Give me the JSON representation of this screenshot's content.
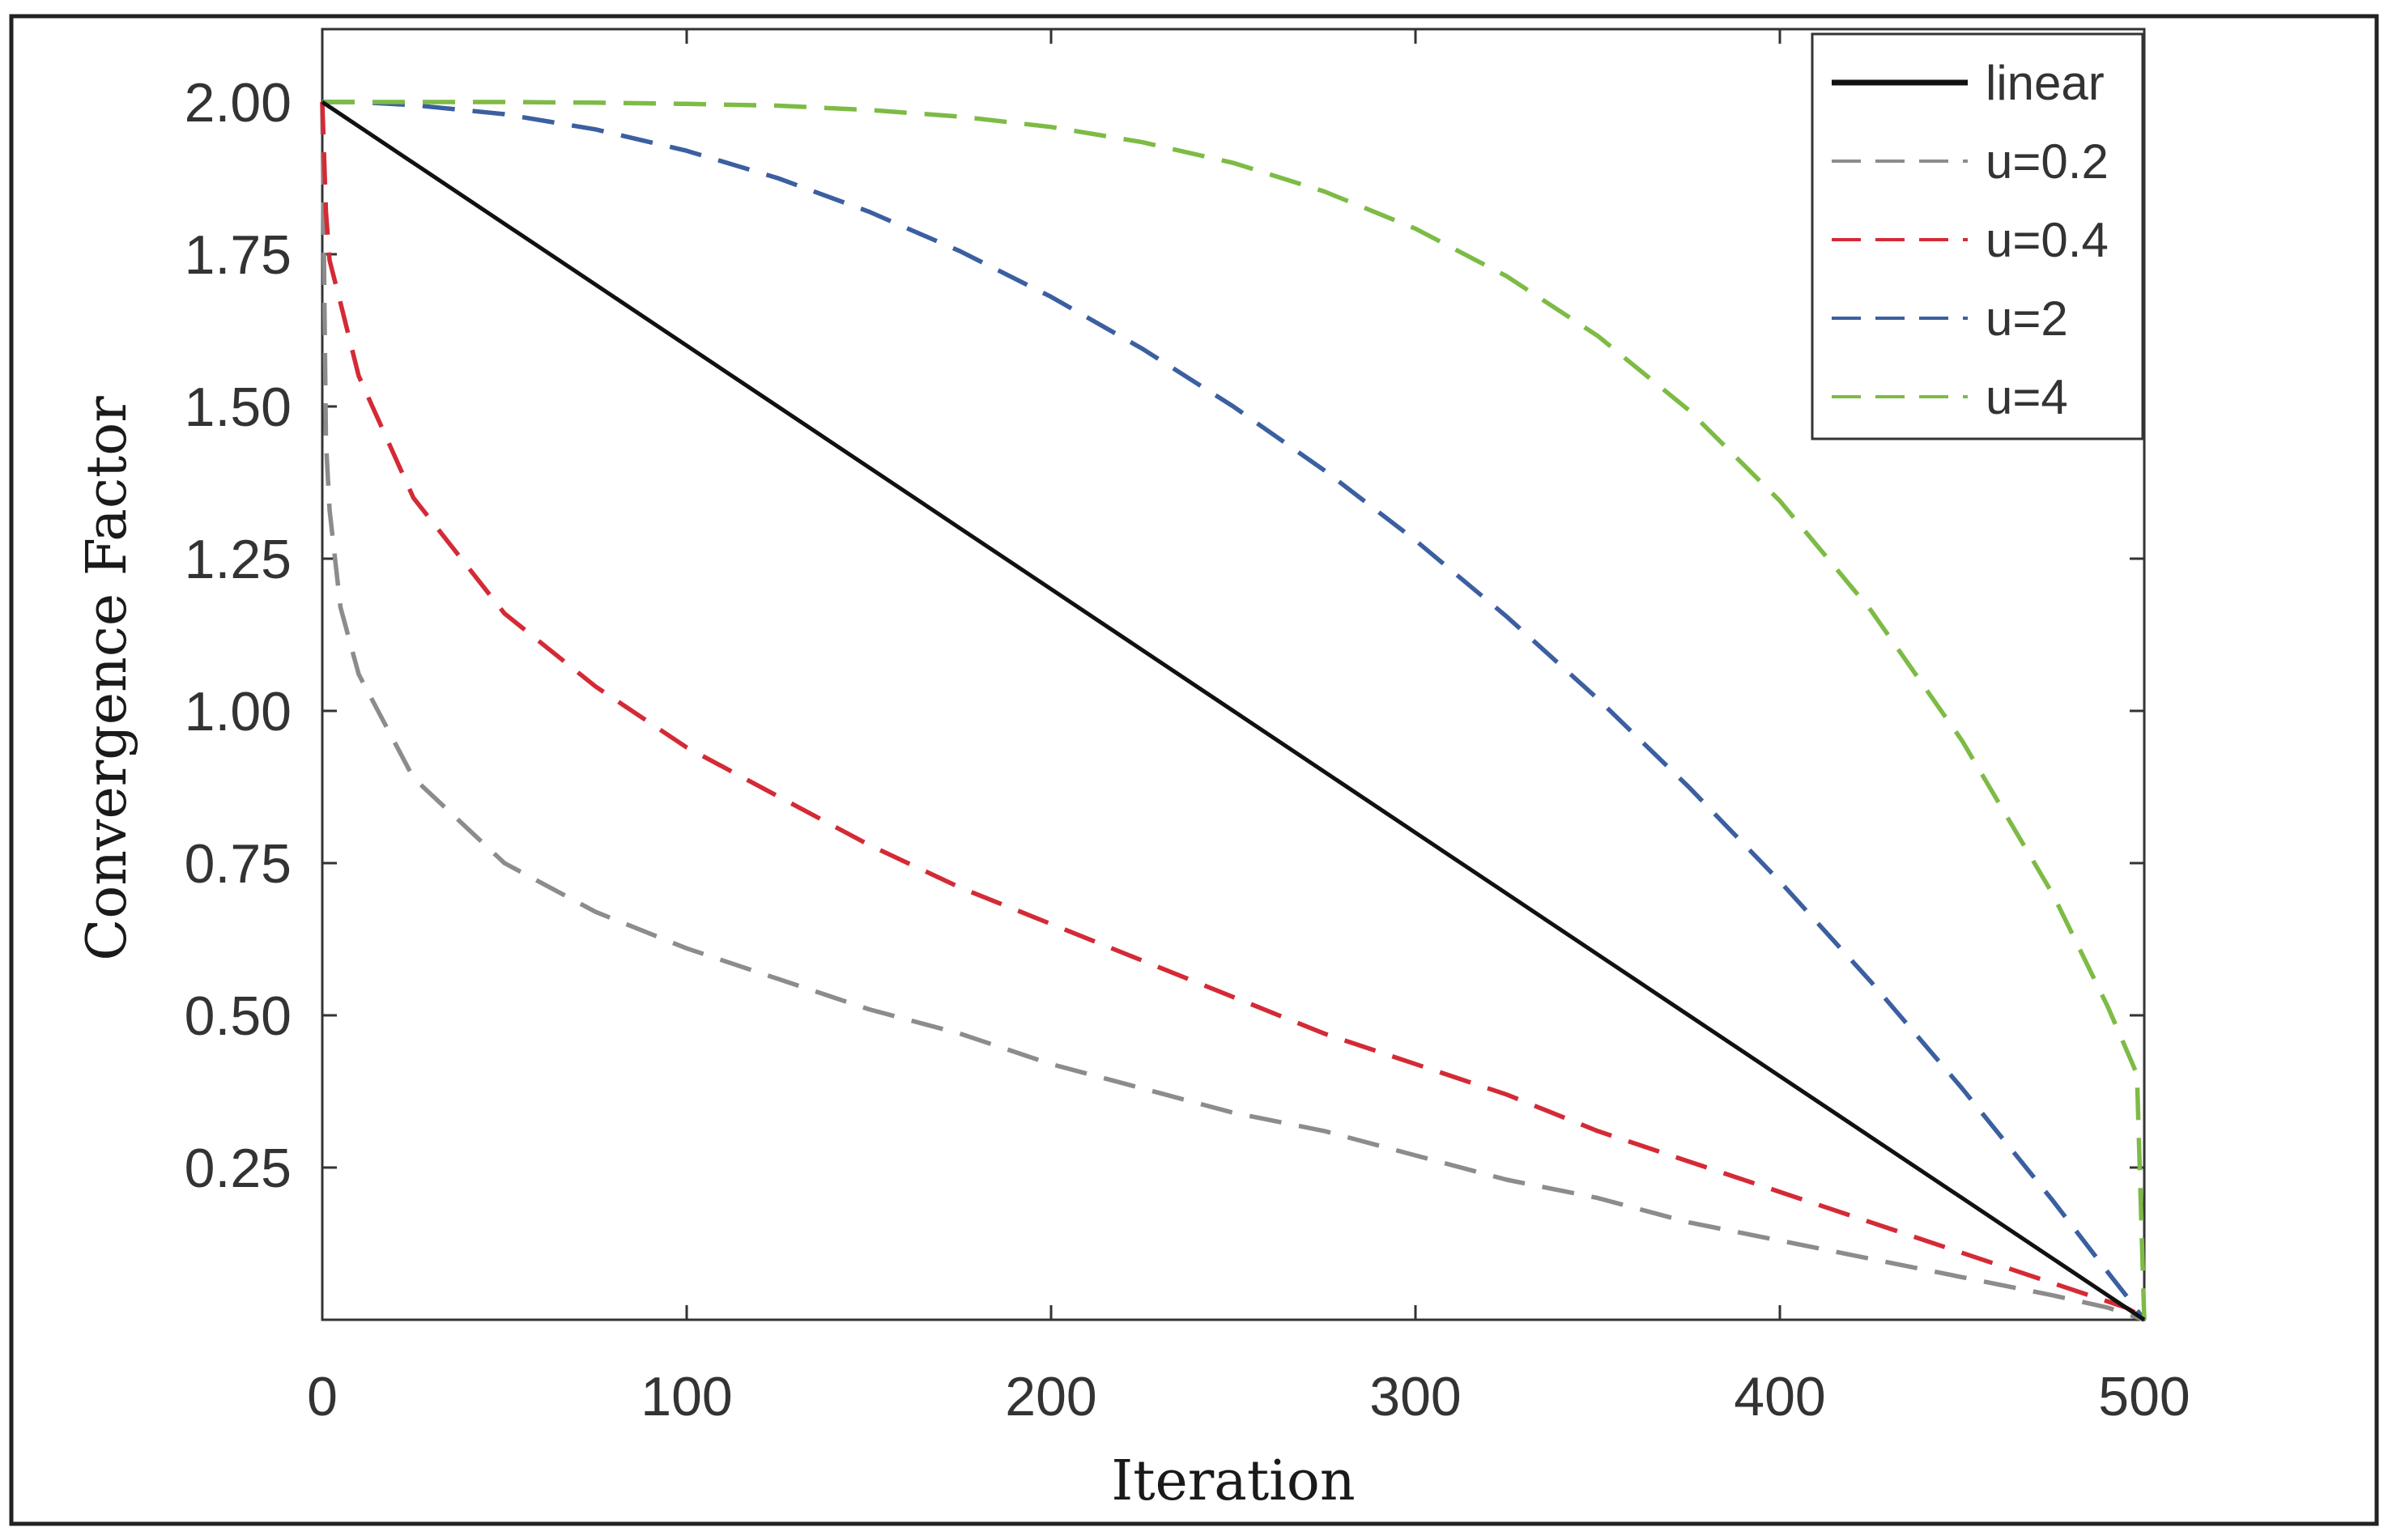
{
  "chart_data": {
    "type": "line",
    "title": "",
    "xlabel": "Iteration",
    "ylabel": "Convergence Factor",
    "xlim": [
      0,
      500
    ],
    "ylim": [
      0,
      2.0
    ],
    "x_ticks": [
      0,
      100,
      200,
      300,
      400,
      500
    ],
    "x_tick_labels": [
      "0",
      "100",
      "200",
      "300",
      "400",
      "500"
    ],
    "y_ticks": [
      0.25,
      0.5,
      0.75,
      1.0,
      1.25,
      1.5,
      1.75,
      2.0
    ],
    "y_tick_labels": [
      "0.25",
      "0.50",
      "0.75",
      "1.00",
      "1.25",
      "1.50",
      "1.75",
      "2.00"
    ],
    "grid": false,
    "legend_position": "top-right",
    "x": [
      0,
      1,
      2,
      5,
      10,
      25,
      50,
      75,
      100,
      125,
      150,
      175,
      200,
      225,
      250,
      275,
      300,
      325,
      350,
      375,
      400,
      425,
      450,
      475,
      490,
      495,
      498,
      500
    ],
    "series": [
      {
        "name": "linear",
        "color": "#111111",
        "style": "solid",
        "values": [
          2.0,
          1.996,
          1.992,
          1.98,
          1.96,
          1.9,
          1.8,
          1.7,
          1.6,
          1.5,
          1.4,
          1.3,
          1.2,
          1.1,
          1.0,
          0.9,
          0.8,
          0.7,
          0.6,
          0.5,
          0.4,
          0.3,
          0.2,
          0.1,
          0.04,
          0.02,
          0.008,
          0.0
        ]
      },
      {
        "name": "u=0.2",
        "color": "#8c8c8c",
        "style": "dashed",
        "values": [
          2.0,
          1.443,
          1.33,
          1.17,
          1.06,
          0.89,
          0.75,
          0.67,
          0.61,
          0.56,
          0.51,
          0.47,
          0.42,
          0.38,
          0.34,
          0.31,
          0.27,
          0.23,
          0.2,
          0.16,
          0.13,
          0.1,
          0.07,
          0.04,
          0.02,
          0.01,
          0.004,
          0.0
        ]
      },
      {
        "name": "u=0.4",
        "color": "#d42a36",
        "style": "dashed",
        "values": [
          2.0,
          1.82,
          1.74,
          1.67,
          1.55,
          1.35,
          1.16,
          1.04,
          0.94,
          0.86,
          0.78,
          0.71,
          0.65,
          0.59,
          0.53,
          0.47,
          0.42,
          0.37,
          0.31,
          0.26,
          0.21,
          0.16,
          0.11,
          0.06,
          0.03,
          0.02,
          0.01,
          0.0
        ]
      },
      {
        "name": "u=2",
        "color": "#3b5fa0",
        "style": "dashed",
        "values": [
          2.0,
          2.0,
          2.0,
          2.0,
          2.0,
          1.995,
          1.98,
          1.955,
          1.92,
          1.875,
          1.82,
          1.755,
          1.68,
          1.595,
          1.5,
          1.395,
          1.28,
          1.155,
          1.02,
          0.875,
          0.72,
          0.555,
          0.38,
          0.195,
          0.078,
          0.04,
          0.016,
          0.0
        ]
      },
      {
        "name": "u=4",
        "color": "#7dbb45",
        "style": "dashed",
        "values": [
          2.0,
          2.0,
          2.0,
          2.0,
          2.0,
          2.0,
          2.0,
          1.999,
          1.997,
          1.994,
          1.987,
          1.976,
          1.959,
          1.934,
          1.9,
          1.853,
          1.792,
          1.714,
          1.616,
          1.494,
          1.345,
          1.165,
          0.951,
          0.698,
          0.514,
          0.445,
          0.403,
          0.0
        ]
      }
    ]
  }
}
